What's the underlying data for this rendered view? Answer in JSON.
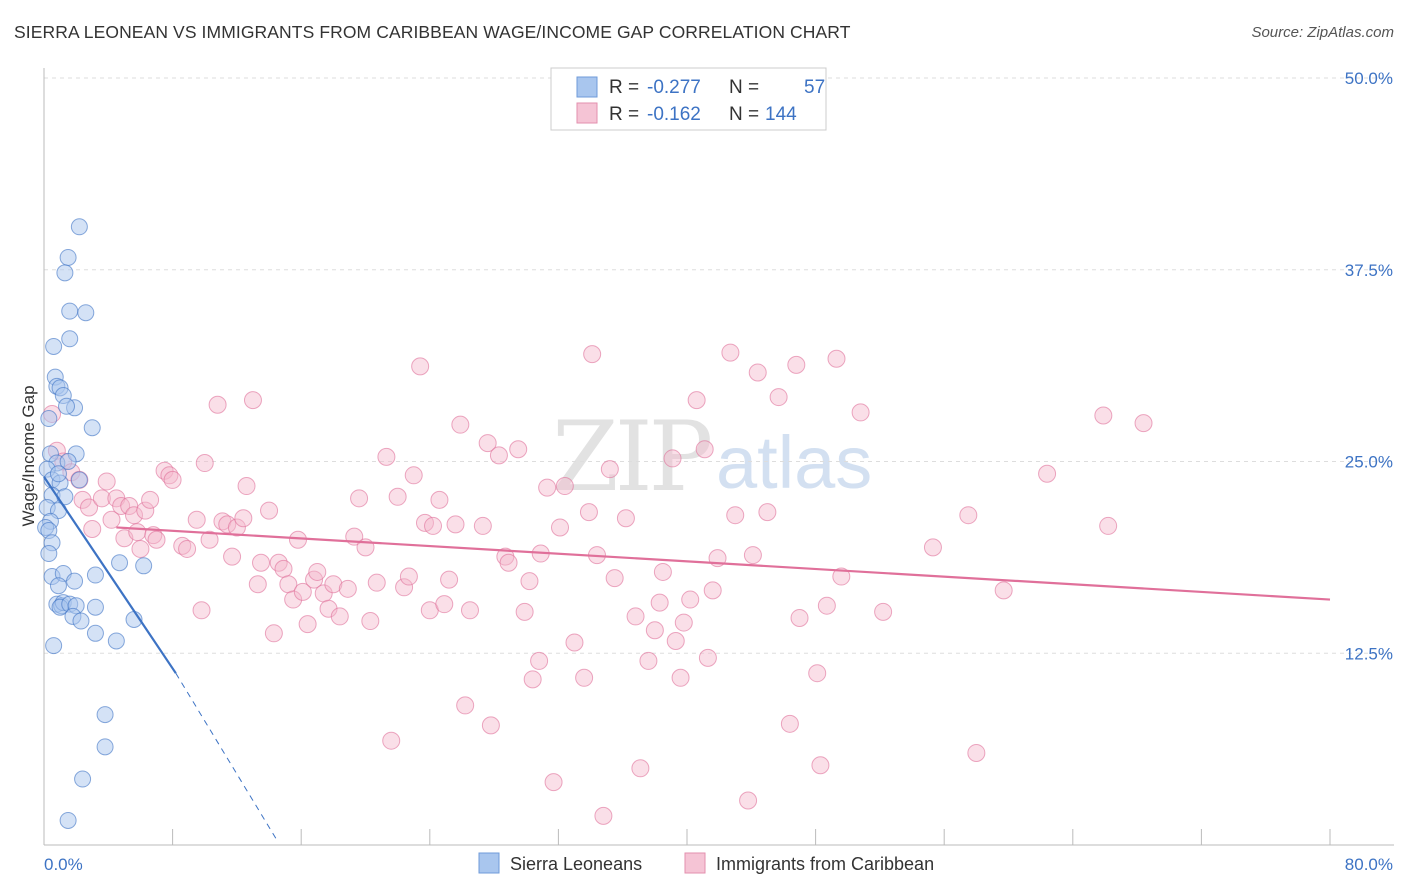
{
  "title": "SIERRA LEONEAN VS IMMIGRANTS FROM CARIBBEAN WAGE/INCOME GAP CORRELATION CHART",
  "source": "Source: ZipAtlas.com",
  "watermark": {
    "zip": "ZIP",
    "atlas": "atlas"
  },
  "colors": {
    "blue": "#3d73c4",
    "blue_fill": "#a9c6ee",
    "pink": "#e0709a",
    "pink_fill": "#f5b8cd",
    "grid": "#dddddd"
  },
  "legend": {
    "r_label": "R =",
    "n_label": "N =",
    "rows": [
      {
        "r": "-0.277",
        "n": "57"
      },
      {
        "r": "-0.162",
        "n": "144"
      }
    ]
  },
  "chart_data": {
    "type": "scatter",
    "title": "SIERRA LEONEAN VS IMMIGRANTS FROM CARIBBEAN WAGE/INCOME GAP CORRELATION CHART",
    "xlabel": "",
    "ylabel": "Wage/Income Gap",
    "xlim": [
      0,
      80
    ],
    "ylim": [
      0,
      50
    ],
    "x_tick_labels": [
      "0.0%",
      "80.0%"
    ],
    "y_ticks": [
      12.5,
      25.0,
      37.5,
      50.0
    ],
    "y_tick_labels": [
      "12.5%",
      "25.0%",
      "37.5%",
      "50.0%"
    ],
    "series": [
      {
        "name": "Sierra Leoneans",
        "r": -0.277,
        "n": 57,
        "trend": {
          "x0": 0.0,
          "y0": 24.0,
          "x1": 8.2,
          "y1": 11.2,
          "dash_x1": 14.5,
          "dash_y1": 0.3
        },
        "points": [
          [
            2.2,
            40.3
          ],
          [
            1.5,
            38.3
          ],
          [
            1.3,
            37.3
          ],
          [
            1.6,
            34.8
          ],
          [
            2.6,
            34.7
          ],
          [
            1.6,
            33.0
          ],
          [
            0.6,
            32.5
          ],
          [
            0.7,
            30.5
          ],
          [
            0.8,
            29.9
          ],
          [
            1.0,
            29.8
          ],
          [
            1.2,
            29.3
          ],
          [
            1.9,
            28.5
          ],
          [
            3.0,
            27.2
          ],
          [
            0.4,
            25.5
          ],
          [
            2.0,
            25.5
          ],
          [
            0.8,
            24.9
          ],
          [
            1.5,
            25.0
          ],
          [
            0.2,
            24.5
          ],
          [
            0.5,
            23.8
          ],
          [
            1.0,
            23.6
          ],
          [
            2.2,
            23.8
          ],
          [
            0.5,
            22.8
          ],
          [
            1.3,
            22.7
          ],
          [
            0.2,
            22.0
          ],
          [
            0.9,
            21.8
          ],
          [
            0.4,
            21.1
          ],
          [
            0.1,
            20.7
          ],
          [
            0.3,
            20.5
          ],
          [
            0.5,
            19.7
          ],
          [
            0.3,
            19.0
          ],
          [
            4.7,
            18.4
          ],
          [
            6.2,
            18.2
          ],
          [
            0.5,
            17.5
          ],
          [
            1.2,
            17.7
          ],
          [
            3.2,
            17.6
          ],
          [
            1.9,
            17.2
          ],
          [
            0.9,
            16.9
          ],
          [
            0.8,
            15.7
          ],
          [
            1.1,
            15.6
          ],
          [
            1.2,
            15.8
          ],
          [
            1.0,
            15.5
          ],
          [
            1.6,
            15.7
          ],
          [
            2.0,
            15.6
          ],
          [
            3.2,
            15.5
          ],
          [
            1.8,
            14.9
          ],
          [
            2.3,
            14.6
          ],
          [
            5.6,
            14.7
          ],
          [
            3.2,
            13.8
          ],
          [
            4.5,
            13.3
          ],
          [
            0.6,
            13.0
          ],
          [
            3.8,
            8.5
          ],
          [
            3.8,
            6.4
          ],
          [
            2.4,
            4.3
          ],
          [
            1.5,
            1.6
          ],
          [
            0.3,
            27.8
          ],
          [
            1.4,
            28.6
          ],
          [
            0.9,
            24.2
          ]
        ]
      },
      {
        "name": "Immigrants from Caribbean",
        "r": -0.162,
        "n": 144,
        "trend": {
          "x0": 4.5,
          "y0": 20.7,
          "x1": 80.0,
          "y1": 16.0
        },
        "points": [
          [
            0.5,
            28.1
          ],
          [
            0.8,
            25.7
          ],
          [
            1.2,
            25.0
          ],
          [
            1.7,
            24.3
          ],
          [
            2.2,
            23.8
          ],
          [
            2.4,
            22.5
          ],
          [
            2.8,
            22.0
          ],
          [
            3.0,
            20.6
          ],
          [
            3.6,
            22.6
          ],
          [
            3.9,
            23.7
          ],
          [
            4.2,
            21.2
          ],
          [
            4.5,
            22.6
          ],
          [
            4.8,
            22.1
          ],
          [
            5.0,
            20.0
          ],
          [
            5.3,
            22.1
          ],
          [
            5.6,
            21.5
          ],
          [
            5.8,
            20.4
          ],
          [
            6.0,
            19.3
          ],
          [
            6.3,
            21.8
          ],
          [
            6.6,
            22.5
          ],
          [
            6.8,
            20.2
          ],
          [
            7.0,
            19.9
          ],
          [
            7.5,
            24.4
          ],
          [
            7.8,
            24.1
          ],
          [
            8.0,
            23.8
          ],
          [
            8.6,
            19.5
          ],
          [
            8.9,
            19.3
          ],
          [
            9.5,
            21.2
          ],
          [
            9.8,
            15.3
          ],
          [
            10.0,
            24.9
          ],
          [
            10.3,
            19.9
          ],
          [
            10.8,
            28.7
          ],
          [
            11.1,
            21.1
          ],
          [
            11.4,
            20.9
          ],
          [
            11.7,
            18.8
          ],
          [
            12.0,
            20.7
          ],
          [
            12.4,
            21.3
          ],
          [
            12.6,
            23.4
          ],
          [
            13.0,
            29.0
          ],
          [
            13.3,
            17.0
          ],
          [
            13.5,
            18.4
          ],
          [
            14.0,
            21.8
          ],
          [
            14.3,
            13.8
          ],
          [
            14.6,
            18.4
          ],
          [
            14.9,
            18.0
          ],
          [
            15.2,
            17.0
          ],
          [
            15.5,
            16.0
          ],
          [
            15.8,
            19.9
          ],
          [
            16.1,
            16.5
          ],
          [
            16.4,
            14.4
          ],
          [
            16.8,
            17.3
          ],
          [
            17.0,
            17.8
          ],
          [
            17.4,
            16.4
          ],
          [
            17.7,
            15.4
          ],
          [
            18.0,
            17.0
          ],
          [
            18.4,
            14.9
          ],
          [
            18.9,
            16.7
          ],
          [
            19.3,
            20.1
          ],
          [
            19.6,
            22.6
          ],
          [
            20.0,
            19.4
          ],
          [
            20.3,
            14.6
          ],
          [
            20.7,
            17.1
          ],
          [
            21.3,
            25.3
          ],
          [
            21.6,
            6.8
          ],
          [
            22.0,
            22.7
          ],
          [
            22.4,
            16.8
          ],
          [
            22.7,
            17.5
          ],
          [
            23.0,
            24.1
          ],
          [
            23.4,
            31.2
          ],
          [
            23.7,
            21.0
          ],
          [
            24.0,
            15.3
          ],
          [
            24.2,
            20.8
          ],
          [
            24.6,
            22.5
          ],
          [
            24.9,
            15.7
          ],
          [
            25.2,
            17.3
          ],
          [
            25.6,
            20.9
          ],
          [
            25.9,
            27.4
          ],
          [
            26.2,
            9.1
          ],
          [
            26.5,
            15.3
          ],
          [
            27.3,
            20.8
          ],
          [
            27.6,
            26.2
          ],
          [
            27.8,
            7.8
          ],
          [
            28.3,
            25.4
          ],
          [
            28.7,
            18.8
          ],
          [
            28.9,
            18.4
          ],
          [
            29.5,
            25.8
          ],
          [
            29.9,
            15.2
          ],
          [
            30.2,
            17.2
          ],
          [
            30.4,
            10.8
          ],
          [
            30.8,
            12.0
          ],
          [
            30.9,
            19.0
          ],
          [
            31.3,
            23.3
          ],
          [
            31.7,
            4.1
          ],
          [
            32.1,
            20.7
          ],
          [
            32.4,
            23.4
          ],
          [
            33.0,
            13.2
          ],
          [
            33.6,
            10.9
          ],
          [
            33.9,
            21.7
          ],
          [
            34.1,
            32.0
          ],
          [
            34.4,
            18.9
          ],
          [
            34.8,
            1.9
          ],
          [
            35.2,
            24.5
          ],
          [
            35.5,
            17.4
          ],
          [
            36.2,
            21.3
          ],
          [
            36.8,
            14.9
          ],
          [
            37.1,
            5.0
          ],
          [
            37.6,
            12.0
          ],
          [
            38.0,
            14.0
          ],
          [
            38.3,
            15.8
          ],
          [
            38.5,
            17.8
          ],
          [
            39.1,
            25.2
          ],
          [
            39.3,
            13.3
          ],
          [
            39.6,
            10.9
          ],
          [
            39.8,
            14.5
          ],
          [
            40.2,
            16.0
          ],
          [
            40.6,
            29.0
          ],
          [
            41.1,
            25.8
          ],
          [
            41.3,
            12.2
          ],
          [
            41.6,
            16.6
          ],
          [
            41.9,
            18.7
          ],
          [
            42.7,
            32.1
          ],
          [
            43.0,
            21.5
          ],
          [
            43.8,
            2.9
          ],
          [
            44.1,
            18.9
          ],
          [
            44.4,
            30.8
          ],
          [
            45.0,
            21.7
          ],
          [
            45.7,
            29.2
          ],
          [
            46.4,
            7.9
          ],
          [
            46.8,
            31.3
          ],
          [
            47.0,
            14.8
          ],
          [
            48.1,
            11.2
          ],
          [
            48.3,
            5.2
          ],
          [
            48.7,
            15.6
          ],
          [
            49.3,
            31.7
          ],
          [
            49.6,
            17.5
          ],
          [
            50.8,
            28.2
          ],
          [
            52.2,
            15.2
          ],
          [
            55.3,
            19.4
          ],
          [
            57.5,
            21.5
          ],
          [
            58.0,
            6.0
          ],
          [
            59.7,
            16.6
          ],
          [
            62.4,
            24.2
          ],
          [
            65.9,
            28.0
          ],
          [
            66.2,
            20.8
          ],
          [
            68.4,
            27.5
          ]
        ]
      }
    ]
  },
  "bottom_legend": [
    "Sierra Leoneans",
    "Immigrants from Caribbean"
  ]
}
